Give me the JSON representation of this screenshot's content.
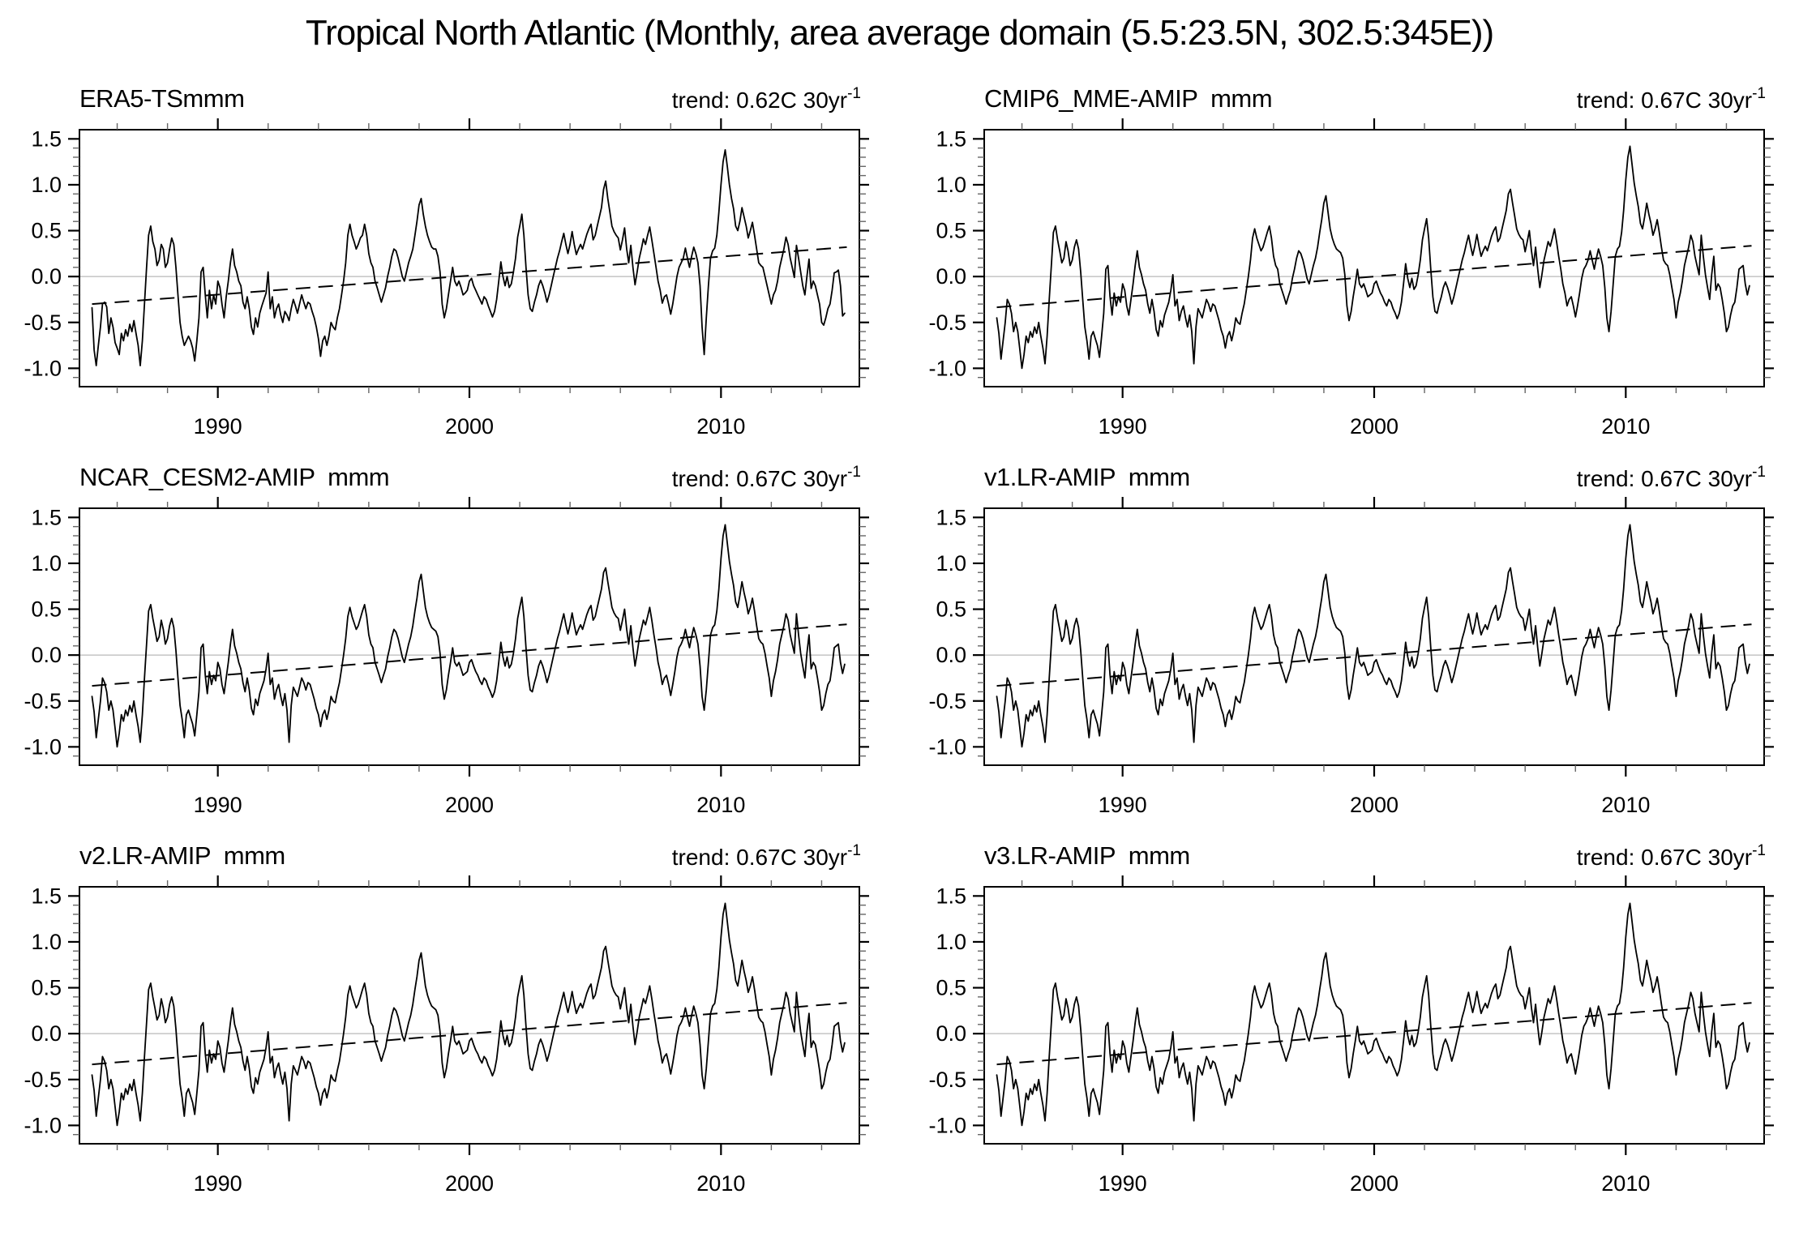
{
  "figure": {
    "title": "Tropical North Atlantic (Monthly, area average domain (5.5:23.5N, 302.5:345E))"
  },
  "chart_data": {
    "type": "line",
    "title": "Tropical North Atlantic (Monthly, area average domain (5.5:23.5N, 302.5:345E))",
    "layout": {
      "rows": 3,
      "cols": 2,
      "legend": "none",
      "grid": "zero-line-only"
    },
    "axes": {
      "xlim": [
        1984.5,
        2015.5
      ],
      "ylim": [
        -1.2,
        1.6
      ],
      "x_major_ticks": [
        1990,
        2000,
        2010
      ],
      "x_tick_labels": [
        "1990",
        "2000",
        "2010"
      ],
      "x_minor_step": 2,
      "x_minor_start": 1986,
      "x_minor_end": 2014,
      "y_major_ticks": [
        -1.0,
        -0.5,
        0.0,
        0.5,
        1.0,
        1.5
      ],
      "y_tick_labels": [
        "-1.0",
        "-0.5",
        "0.0",
        "0.5",
        "1.0",
        "1.5"
      ],
      "y_minor_step": 0.1,
      "ticks_out": true,
      "zero_line": true
    },
    "style": {
      "line_color": "#000000",
      "trend_color": "#000000",
      "zero_line_color": "#b9b9b9",
      "frame_color": "#000000",
      "minor_tick_color": "#666666"
    },
    "panels": [
      {
        "title": "ERA5-TSmmm",
        "trend_text": "trend: 0.62C 30yr",
        "trend_exponent": "-1",
        "trend_per_30yr": 0.62,
        "series_key": "era5",
        "trend_line": {
          "x": [
            1985,
            2015
          ],
          "y": [
            -0.3,
            0.32
          ]
        }
      },
      {
        "title": "CMIP6_MME-AMIP  mmm",
        "trend_text": "trend: 0.67C 30yr",
        "trend_exponent": "-1",
        "trend_per_30yr": 0.67,
        "series_key": "amip_mmm",
        "trend_line": {
          "x": [
            1985,
            2015
          ],
          "y": [
            -0.335,
            0.335
          ]
        }
      },
      {
        "title": "NCAR_CESM2-AMIP  mmm",
        "trend_text": "trend: 0.67C 30yr",
        "trend_exponent": "-1",
        "trend_per_30yr": 0.67,
        "series_key": "amip_mmm",
        "trend_line": {
          "x": [
            1985,
            2015
          ],
          "y": [
            -0.335,
            0.335
          ]
        }
      },
      {
        "title": "v1.LR-AMIP  mmm",
        "trend_text": "trend: 0.67C 30yr",
        "trend_exponent": "-1",
        "trend_per_30yr": 0.67,
        "series_key": "amip_mmm",
        "trend_line": {
          "x": [
            1985,
            2015
          ],
          "y": [
            -0.335,
            0.335
          ]
        }
      },
      {
        "title": "v2.LR-AMIP  mmm",
        "trend_text": "trend: 0.67C 30yr",
        "trend_exponent": "-1",
        "trend_per_30yr": 0.67,
        "series_key": "amip_mmm",
        "trend_line": {
          "x": [
            1985,
            2015
          ],
          "y": [
            -0.335,
            0.335
          ]
        }
      },
      {
        "title": "v3.LR-AMIP  mmm",
        "trend_text": "trend: 0.67C 30yr",
        "trend_exponent": "-1",
        "trend_per_30yr": 0.67,
        "series_key": "amip_mmm",
        "trend_line": {
          "x": [
            1985,
            2015
          ],
          "y": [
            -0.335,
            0.335
          ]
        }
      }
    ],
    "series_data": {
      "era5": {
        "x_start": 1985.0,
        "points_per_year": 12,
        "values": [
          -0.34,
          -0.8,
          -0.97,
          -0.75,
          -0.55,
          -0.3,
          -0.28,
          -0.33,
          -0.62,
          -0.45,
          -0.55,
          -0.72,
          -0.78,
          -0.85,
          -0.62,
          -0.7,
          -0.58,
          -0.65,
          -0.52,
          -0.6,
          -0.48,
          -0.62,
          -0.75,
          -0.97,
          -0.7,
          -0.3,
          0.1,
          0.45,
          0.55,
          0.38,
          0.3,
          0.12,
          0.18,
          0.35,
          0.3,
          0.1,
          0.15,
          0.3,
          0.42,
          0.35,
          0.1,
          -0.2,
          -0.5,
          -0.65,
          -0.75,
          -0.7,
          -0.65,
          -0.7,
          -0.78,
          -0.92,
          -0.7,
          -0.45,
          0.05,
          0.1,
          -0.2,
          -0.45,
          -0.15,
          -0.35,
          -0.2,
          -0.3,
          -0.05,
          -0.12,
          -0.3,
          -0.45,
          -0.22,
          -0.05,
          0.15,
          0.3,
          0.12,
          0.05,
          -0.05,
          -0.1,
          -0.28,
          -0.35,
          -0.22,
          -0.35,
          -0.55,
          -0.63,
          -0.45,
          -0.55,
          -0.4,
          -0.32,
          -0.25,
          -0.18,
          0.05,
          -0.35,
          -0.22,
          -0.45,
          -0.35,
          -0.3,
          -0.42,
          -0.5,
          -0.38,
          -0.42,
          -0.48,
          -0.35,
          -0.25,
          -0.32,
          -0.4,
          -0.3,
          -0.2,
          -0.28,
          -0.35,
          -0.28,
          -0.3,
          -0.38,
          -0.45,
          -0.55,
          -0.68,
          -0.87,
          -0.7,
          -0.65,
          -0.75,
          -0.65,
          -0.5,
          -0.55,
          -0.58,
          -0.45,
          -0.35,
          -0.2,
          -0.05,
          0.15,
          0.45,
          0.57,
          0.45,
          0.38,
          0.3,
          0.35,
          0.42,
          0.45,
          0.57,
          0.45,
          0.25,
          0.15,
          0.1,
          -0.05,
          -0.12,
          -0.2,
          -0.28,
          -0.2,
          -0.12,
          0.0,
          0.1,
          0.22,
          0.3,
          0.28,
          0.2,
          0.1,
          0.0,
          -0.05,
          0.05,
          0.15,
          0.22,
          0.3,
          0.45,
          0.6,
          0.78,
          0.85,
          0.68,
          0.55,
          0.45,
          0.38,
          0.32,
          0.3,
          0.3,
          0.22,
          0.05,
          -0.3,
          -0.45,
          -0.35,
          -0.2,
          -0.05,
          0.1,
          -0.05,
          -0.1,
          -0.05,
          -0.12,
          -0.2,
          -0.18,
          -0.15,
          -0.05,
          -0.02,
          -0.1,
          -0.15,
          -0.2,
          -0.25,
          -0.3,
          -0.22,
          -0.25,
          -0.32,
          -0.38,
          -0.44,
          -0.38,
          -0.25,
          -0.05,
          0.16,
          0.0,
          -0.1,
          0.0,
          -0.12,
          -0.08,
          0.05,
          0.2,
          0.43,
          0.55,
          0.68,
          0.45,
          0.1,
          -0.2,
          -0.35,
          -0.38,
          -0.28,
          -0.2,
          -0.1,
          -0.04,
          -0.1,
          -0.18,
          -0.28,
          -0.2,
          -0.1,
          0.0,
          0.1,
          0.2,
          0.28,
          0.38,
          0.47,
          0.35,
          0.25,
          0.35,
          0.49,
          0.35,
          0.24,
          0.3,
          0.35,
          0.3,
          0.38,
          0.46,
          0.52,
          0.57,
          0.4,
          0.45,
          0.55,
          0.65,
          0.75,
          0.95,
          1.04,
          0.85,
          0.7,
          0.55,
          0.49,
          0.45,
          0.42,
          0.29,
          0.4,
          0.53,
          0.3,
          0.15,
          0.34,
          0.1,
          -0.09,
          0.05,
          0.2,
          0.3,
          0.41,
          0.35,
          0.45,
          0.54,
          0.4,
          0.25,
          0.1,
          -0.05,
          -0.15,
          -0.29,
          -0.22,
          -0.2,
          -0.3,
          -0.41,
          -0.3,
          -0.15,
          0.0,
          0.1,
          0.15,
          0.2,
          0.31,
          0.2,
          0.1,
          0.22,
          0.32,
          0.25,
          0.15,
          -0.1,
          -0.55,
          -0.85,
          -0.45,
          -0.1,
          0.2,
          0.28,
          0.31,
          0.45,
          0.7,
          1.0,
          1.25,
          1.38,
          1.2,
          1.0,
          0.85,
          0.74,
          0.55,
          0.5,
          0.6,
          0.75,
          0.65,
          0.55,
          0.42,
          0.5,
          0.59,
          0.45,
          0.3,
          0.15,
          0.12,
          0.1,
          0.0,
          -0.1,
          -0.2,
          -0.3,
          -0.2,
          -0.15,
          -0.05,
          0.1,
          0.2,
          0.3,
          0.43,
          0.35,
          0.2,
          0.1,
          -0.01,
          0.34,
          0.2,
          0.05,
          -0.1,
          -0.2,
          0.0,
          0.19,
          -0.13,
          -0.05,
          -0.1,
          -0.2,
          -0.3,
          -0.5,
          -0.53,
          -0.45,
          -0.35,
          -0.3,
          -0.15,
          0.04,
          0.05,
          0.07,
          -0.1,
          -0.43,
          -0.4
        ]
      },
      "amip_mmm": {
        "x_start": 1985.0,
        "points_per_year": 12,
        "values": [
          -0.45,
          -0.62,
          -0.9,
          -0.7,
          -0.5,
          -0.25,
          -0.3,
          -0.4,
          -0.6,
          -0.5,
          -0.6,
          -0.8,
          -1.0,
          -0.85,
          -0.65,
          -0.72,
          -0.6,
          -0.66,
          -0.55,
          -0.62,
          -0.5,
          -0.65,
          -0.78,
          -0.95,
          -0.65,
          -0.25,
          0.12,
          0.48,
          0.55,
          0.4,
          0.28,
          0.15,
          0.2,
          0.38,
          0.28,
          0.12,
          0.18,
          0.32,
          0.4,
          0.3,
          0.05,
          -0.25,
          -0.55,
          -0.7,
          -0.9,
          -0.65,
          -0.6,
          -0.68,
          -0.75,
          -0.88,
          -0.65,
          -0.4,
          0.08,
          0.12,
          -0.22,
          -0.42,
          -0.18,
          -0.32,
          -0.22,
          -0.28,
          -0.08,
          -0.15,
          -0.32,
          -0.42,
          -0.25,
          -0.08,
          0.12,
          0.28,
          0.1,
          0.02,
          -0.08,
          -0.15,
          -0.3,
          -0.4,
          -0.25,
          -0.38,
          -0.58,
          -0.65,
          -0.48,
          -0.55,
          -0.42,
          -0.35,
          -0.28,
          -0.15,
          0.02,
          -0.32,
          -0.25,
          -0.48,
          -0.38,
          -0.32,
          -0.45,
          -0.55,
          -0.42,
          -0.6,
          -0.95,
          -0.55,
          -0.35,
          -0.4,
          -0.45,
          -0.35,
          -0.25,
          -0.3,
          -0.38,
          -0.3,
          -0.32,
          -0.4,
          -0.48,
          -0.58,
          -0.65,
          -0.78,
          -0.65,
          -0.6,
          -0.7,
          -0.6,
          -0.45,
          -0.5,
          -0.52,
          -0.4,
          -0.3,
          -0.15,
          0.0,
          0.18,
          0.42,
          0.52,
          0.42,
          0.35,
          0.28,
          0.32,
          0.4,
          0.48,
          0.55,
          0.42,
          0.22,
          0.12,
          0.08,
          -0.08,
          -0.15,
          -0.22,
          -0.3,
          -0.22,
          -0.15,
          -0.02,
          0.08,
          0.2,
          0.28,
          0.25,
          0.18,
          0.08,
          -0.02,
          -0.08,
          0.02,
          0.12,
          0.2,
          0.32,
          0.48,
          0.62,
          0.8,
          0.88,
          0.7,
          0.52,
          0.42,
          0.35,
          0.3,
          0.28,
          0.26,
          0.2,
          0.02,
          -0.32,
          -0.48,
          -0.38,
          -0.22,
          -0.08,
          0.08,
          -0.08,
          -0.12,
          -0.08,
          -0.15,
          -0.22,
          -0.2,
          -0.18,
          -0.08,
          -0.05,
          -0.12,
          -0.18,
          -0.22,
          -0.28,
          -0.32,
          -0.25,
          -0.28,
          -0.35,
          -0.4,
          -0.46,
          -0.4,
          -0.28,
          -0.08,
          0.14,
          -0.02,
          -0.12,
          -0.02,
          -0.14,
          -0.1,
          0.02,
          0.18,
          0.4,
          0.52,
          0.63,
          0.42,
          0.08,
          -0.22,
          -0.38,
          -0.4,
          -0.3,
          -0.22,
          -0.12,
          -0.06,
          -0.12,
          -0.2,
          -0.3,
          -0.22,
          -0.12,
          -0.02,
          0.08,
          0.18,
          0.26,
          0.36,
          0.45,
          0.33,
          0.23,
          0.33,
          0.46,
          0.33,
          0.22,
          0.28,
          0.33,
          0.28,
          0.36,
          0.44,
          0.5,
          0.54,
          0.38,
          0.42,
          0.52,
          0.62,
          0.72,
          0.9,
          0.95,
          0.8,
          0.66,
          0.52,
          0.46,
          0.42,
          0.4,
          0.27,
          0.38,
          0.5,
          0.28,
          0.12,
          0.32,
          0.08,
          -0.12,
          0.02,
          0.18,
          0.28,
          0.38,
          0.33,
          0.42,
          0.52,
          0.38,
          0.22,
          0.08,
          -0.08,
          -0.18,
          -0.32,
          -0.25,
          -0.22,
          -0.32,
          -0.44,
          -0.32,
          -0.18,
          -0.02,
          0.08,
          0.12,
          0.18,
          0.28,
          0.18,
          0.08,
          0.2,
          0.3,
          0.22,
          0.12,
          -0.12,
          -0.45,
          -0.6,
          -0.38,
          -0.08,
          0.22,
          0.3,
          0.33,
          0.48,
          0.72,
          1.05,
          1.3,
          1.42,
          1.22,
          1.02,
          0.88,
          0.76,
          0.58,
          0.52,
          0.65,
          0.8,
          0.68,
          0.58,
          0.45,
          0.52,
          0.62,
          0.48,
          0.32,
          0.18,
          0.14,
          0.12,
          0.02,
          -0.12,
          -0.25,
          -0.45,
          -0.28,
          -0.18,
          -0.05,
          0.12,
          0.22,
          0.32,
          0.45,
          0.38,
          0.22,
          0.12,
          0.02,
          0.45,
          0.22,
          0.02,
          -0.12,
          -0.25,
          0.02,
          0.22,
          -0.15,
          -0.08,
          -0.12,
          -0.25,
          -0.4,
          -0.6,
          -0.55,
          -0.42,
          -0.32,
          -0.28,
          -0.12,
          0.08,
          0.1,
          0.12,
          -0.08,
          -0.2,
          -0.1
        ]
      }
    }
  }
}
